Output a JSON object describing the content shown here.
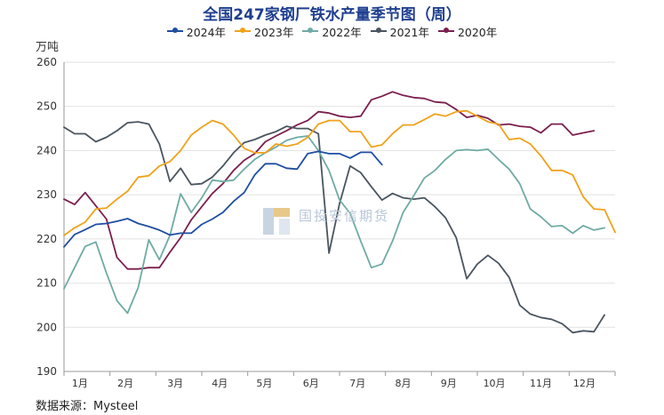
{
  "chart_data": {
    "type": "line",
    "title": "全国247家钢厂铁水产量季节图（周）",
    "ylabel": "万吨",
    "xlabel": "",
    "ylim": [
      190,
      260
    ],
    "yticks": [
      190,
      200,
      210,
      220,
      230,
      240,
      250,
      260
    ],
    "xlim": [
      1,
      53
    ],
    "x_tick_labels": [
      "1月",
      "2月",
      "3月",
      "4月",
      "5月",
      "6月",
      "7月",
      "8月",
      "9月",
      "10月",
      "11月",
      "12月"
    ],
    "x_tick_positions": [
      2.5,
      6.8,
      11.5,
      15.7,
      19.9,
      24.3,
      28.7,
      33.0,
      37.3,
      41.6,
      46.0,
      50.1
    ],
    "grid": true,
    "legend_position": "top-center",
    "source": "数据来源：Mysteel",
    "series": [
      {
        "name": "2024年",
        "color": "#1f4ea1",
        "values": [
          218.2,
          221.0,
          222.1,
          223.3,
          223.5,
          224.0,
          224.6,
          223.5,
          222.8,
          222.0,
          220.9,
          221.3,
          221.3,
          223.3,
          224.5,
          226.0,
          228.5,
          230.5,
          234.5,
          237.0,
          237.0,
          236.0,
          235.8,
          239.3,
          239.8,
          239.3,
          239.3,
          238.3,
          239.6,
          239.6,
          236.8
        ]
      },
      {
        "name": "2023年",
        "color": "#f0a21b",
        "values": [
          220.8,
          222.5,
          223.8,
          226.8,
          227.0,
          229.0,
          230.8,
          234.0,
          234.3,
          236.5,
          237.5,
          240.0,
          243.5,
          245.3,
          246.8,
          246.0,
          243.5,
          240.5,
          239.5,
          239.5,
          241.5,
          241.0,
          241.5,
          243.0,
          246.0,
          246.8,
          246.8,
          244.3,
          244.3,
          240.8,
          241.3,
          243.8,
          245.8,
          245.8,
          247.0,
          248.3,
          247.8,
          248.8,
          249.0,
          247.8,
          246.5,
          246.0,
          242.5,
          242.8,
          241.5,
          238.8,
          235.5,
          235.5,
          234.5,
          229.5,
          226.8,
          226.6,
          221.5
        ]
      },
      {
        "name": "2022年",
        "color": "#6faba4",
        "values": [
          208.7,
          213.5,
          218.3,
          219.3,
          212.3,
          206.0,
          203.2,
          209.0,
          219.8,
          215.3,
          220.8,
          230.2,
          226.0,
          229.3,
          233.3,
          233.0,
          233.3,
          235.8,
          238.0,
          239.5,
          240.8,
          242.3,
          243.0,
          243.3,
          240.0,
          235.5,
          228.8,
          225.8,
          219.5,
          213.5,
          214.3,
          219.5,
          226.0,
          229.8,
          233.8,
          235.5,
          238.0,
          240.0,
          240.2,
          240.0,
          240.3,
          238.0,
          235.8,
          232.5,
          226.8,
          225.0,
          222.8,
          223.0,
          221.3,
          223.0,
          222.0,
          222.5
        ]
      },
      {
        "name": "2021年",
        "color": "#4a5560",
        "values": [
          245.3,
          243.8,
          243.8,
          242.0,
          243.0,
          244.5,
          246.3,
          246.5,
          246.0,
          241.5,
          233.0,
          236.0,
          232.3,
          232.5,
          234.0,
          236.5,
          239.5,
          241.8,
          242.5,
          243.5,
          244.3,
          245.5,
          245.0,
          245.0,
          243.8,
          216.8,
          228.0,
          236.5,
          235.0,
          231.8,
          228.8,
          230.3,
          229.3,
          229.0,
          229.3,
          227.3,
          224.8,
          220.3,
          211.0,
          214.3,
          216.3,
          214.5,
          211.3,
          205.0,
          203.0,
          202.2,
          201.8,
          200.8,
          198.8,
          199.2,
          199.0,
          202.8
        ]
      },
      {
        "name": "2020年",
        "color": "#7b1f4e",
        "values": [
          229.0,
          227.8,
          230.5,
          227.5,
          224.5,
          215.8,
          213.2,
          213.2,
          213.5,
          213.5,
          217.0,
          220.3,
          224.3,
          227.3,
          230.3,
          232.5,
          235.5,
          237.8,
          239.3,
          242.0,
          243.3,
          244.5,
          245.8,
          246.8,
          248.8,
          248.5,
          247.8,
          247.5,
          247.8,
          251.5,
          252.3,
          253.3,
          252.5,
          252.0,
          251.8,
          251.0,
          250.8,
          249.3,
          247.5,
          248.0,
          247.3,
          245.8,
          246.0,
          245.5,
          245.3,
          244.0,
          246.0,
          246.0,
          243.5,
          244.0,
          244.5
        ]
      }
    ]
  }
}
